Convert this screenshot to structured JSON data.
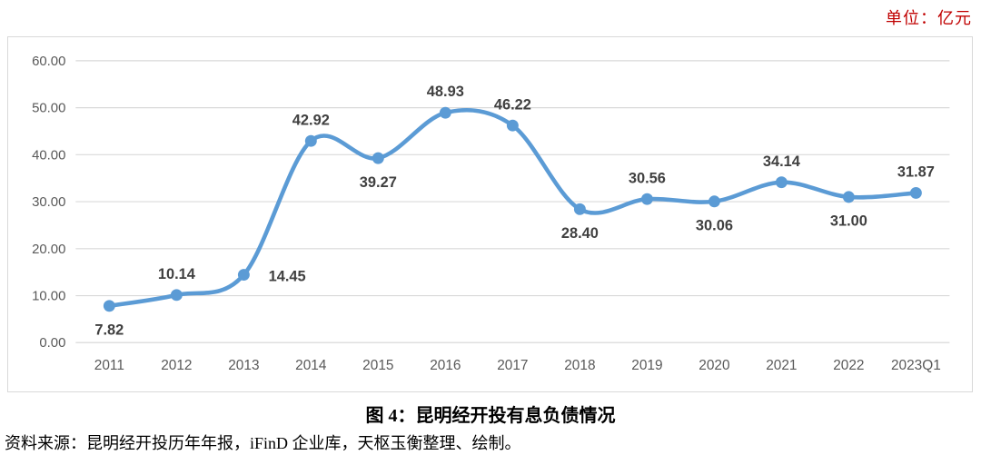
{
  "page": {
    "unit_label": "单位：亿元",
    "caption": "图 4：昆明经开投有息负债情况",
    "source": "资料来源：昆明经开投历年年报，iFinD 企业库，天枢玉衡整理、绘制。"
  },
  "colors": {
    "line": "#5B9BD5",
    "marker": "#5B9BD5",
    "unit_text": "#C00000",
    "axis_text": "#595959",
    "data_label": "#404040",
    "gridline": "#D9D9D9",
    "chart_border": "#D9D9D9"
  },
  "chart_data": {
    "type": "line",
    "title": "图 4：昆明经开投有息负债情况",
    "unit": "亿元",
    "categories": [
      "2011",
      "2012",
      "2013",
      "2014",
      "2015",
      "2016",
      "2017",
      "2018",
      "2019",
      "2020",
      "2021",
      "2022",
      "2023Q1"
    ],
    "values": [
      7.82,
      10.14,
      14.45,
      42.92,
      39.27,
      48.93,
      46.22,
      28.4,
      30.56,
      30.06,
      34.14,
      31.0,
      31.87
    ],
    "point_labels": [
      "7.82",
      "10.14",
      "14.45",
      "42.92",
      "39.27",
      "48.93",
      "46.22",
      "28.40",
      "30.56",
      "30.06",
      "34.14",
      "31.00",
      "31.87"
    ],
    "label_positions": [
      "below",
      "above",
      "right",
      "above",
      "below",
      "above",
      "above",
      "below",
      "above",
      "below",
      "above",
      "below",
      "above"
    ],
    "ylim": [
      0,
      60
    ],
    "y_ticks": [
      "0.00",
      "10.00",
      "20.00",
      "30.00",
      "40.00",
      "50.00",
      "60.00"
    ],
    "xlabel": "",
    "ylabel": "",
    "grid": true,
    "smooth": true,
    "legend": "none"
  }
}
